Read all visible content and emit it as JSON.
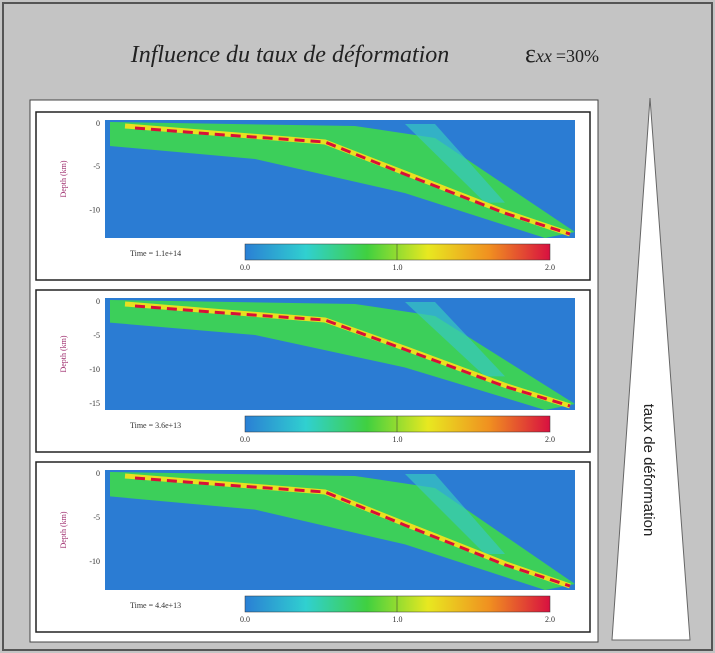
{
  "title": "Influence du taux de déformation",
  "strain": {
    "symbol": "ε",
    "subscript": "xx",
    "value": "=30%"
  },
  "side_label": "taux de déformation",
  "panels": [
    {
      "axis_label": "Depth (km)",
      "yticks": [
        "0",
        "-5",
        "-10"
      ],
      "time": "Time = 1.1e+14",
      "colorbar_ticks": [
        "0.0",
        "1.0",
        "2.0"
      ]
    },
    {
      "axis_label": "Depth (km)",
      "yticks": [
        "0",
        "-5",
        "-10",
        "-15"
      ],
      "time": "Time = 3.6e+13",
      "colorbar_ticks": [
        "0.0",
        "1.0",
        "2.0"
      ]
    },
    {
      "axis_label": "Depth (km)",
      "yticks": [
        "0",
        "-5",
        "-10"
      ],
      "time": "Time = 4.4e+13",
      "colorbar_ticks": [
        "0.0",
        "1.0",
        "2.0"
      ]
    }
  ]
}
